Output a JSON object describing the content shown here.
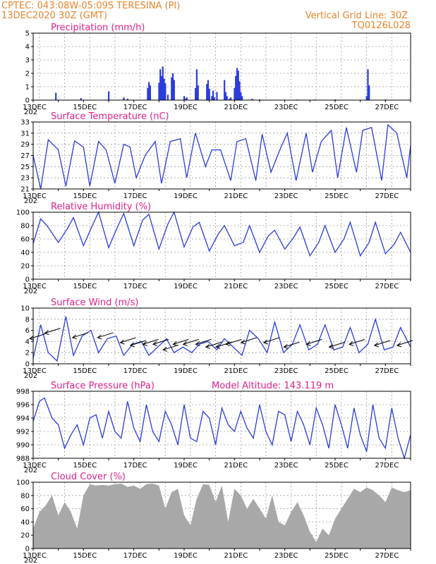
{
  "header": {
    "line1_left": "CPTEC:   043:08W-05:09S   TERESINA (PI)",
    "line2_left": "13DEC2020  30Z (GMT)",
    "line2_right": "Vertical Grid Line: 30Z",
    "line3_right": "TQ0126L028"
  },
  "colors": {
    "header": "#e8842a",
    "panel_title": "#e0208a",
    "series": "#2a3ddb",
    "cloud": "#a8a8a8"
  },
  "x_axis": {
    "labels": [
      "13DEC",
      "15DEC",
      "17DEC",
      "19DEC",
      "21DEC",
      "23DEC",
      "25DEC",
      "27DEC"
    ],
    "year_stub": "202"
  },
  "chart_data": [
    {
      "type": "bar",
      "title": "Precipitation (mm/h)",
      "ylim": [
        0,
        5
      ],
      "yticks": [
        "0",
        "1",
        "2",
        "3",
        "4",
        "5"
      ],
      "x_unit": "days since 13DEC2020 00Z",
      "x": [
        0.9,
        1.9,
        3.0,
        3.6,
        3.75,
        4.55,
        4.6,
        4.65,
        5.0,
        5.05,
        5.1,
        5.15,
        5.2,
        5.25,
        5.35,
        5.5,
        5.55,
        5.6,
        6.0,
        6.05,
        6.1,
        6.45,
        6.5,
        6.55,
        6.9,
        6.95,
        7.0,
        7.1,
        7.15,
        7.2,
        7.3,
        7.6,
        7.65,
        7.7,
        7.8,
        7.85,
        8.0,
        8.05,
        8.1,
        8.15,
        8.2,
        8.25,
        8.3,
        8.7,
        9.0,
        10.5,
        11.2,
        12.0,
        13.25,
        13.3,
        13.35,
        14.0
      ],
      "values": [
        0.55,
        0.15,
        0.65,
        0.2,
        0.1,
        0.9,
        1.35,
        1.1,
        1.3,
        2.3,
        1.8,
        2.5,
        1.6,
        1.25,
        0.4,
        1.7,
        2.0,
        1.5,
        0.3,
        0.1,
        0.2,
        0.9,
        2.3,
        1.1,
        1.2,
        1.5,
        0.85,
        0.3,
        0.7,
        0.2,
        0.6,
        1.5,
        0.6,
        0.3,
        0.1,
        0.2,
        0.9,
        1.8,
        2.4,
        2.2,
        1.4,
        0.6,
        0.3,
        0.1,
        0.05,
        0.05,
        0.05,
        0.05,
        0.3,
        2.3,
        1.1,
        0.05
      ]
    },
    {
      "type": "line",
      "title": "Surface Temperature (nC)",
      "ylim": [
        21,
        33
      ],
      "yticks": [
        "21",
        "23",
        "25",
        "27",
        "29",
        "31",
        "33"
      ],
      "x_unit": "days since 13DEC2020 00Z",
      "x": [
        0,
        0.3,
        0.6,
        1.0,
        1.3,
        1.65,
        2.0,
        2.25,
        2.6,
        2.9,
        3.25,
        3.6,
        3.85,
        4.1,
        4.45,
        4.85,
        5.1,
        5.45,
        5.85,
        6.1,
        6.45,
        6.85,
        7.1,
        7.45,
        7.85,
        8.1,
        8.45,
        8.85,
        9.1,
        9.45,
        9.85,
        10.1,
        10.45,
        10.85,
        11.1,
        11.45,
        11.85,
        12.1,
        12.45,
        12.85,
        13.1,
        13.45,
        13.85,
        14.1,
        14.45,
        14.85,
        15.0
      ],
      "values": [
        27.0,
        21.0,
        29.8,
        28.0,
        21.5,
        29.6,
        28.5,
        21.5,
        29.5,
        28.0,
        22.0,
        29.0,
        28.5,
        23.0,
        27.0,
        29.5,
        22.0,
        29.5,
        30.0,
        23.0,
        31.0,
        25.0,
        28.0,
        28.0,
        22.5,
        29.5,
        30.0,
        22.5,
        30.8,
        24.0,
        28.5,
        31.0,
        22.5,
        31.0,
        24.0,
        29.5,
        31.5,
        23.0,
        32.0,
        24.0,
        31.5,
        32.0,
        22.5,
        32.5,
        31.0,
        23.0,
        28.8
      ]
    },
    {
      "type": "line",
      "title": "Relative Humidity (%)",
      "ylim": [
        0,
        100
      ],
      "yticks": [
        "0",
        "20",
        "40",
        "60",
        "80",
        "100"
      ],
      "x_unit": "days since 13DEC2020 00Z",
      "x": [
        0,
        0.3,
        0.55,
        1.0,
        1.35,
        1.6,
        2.0,
        2.35,
        2.6,
        3.0,
        3.35,
        3.6,
        4.0,
        4.35,
        4.6,
        5.0,
        5.35,
        5.6,
        6.0,
        6.35,
        6.6,
        7.0,
        7.35,
        7.6,
        8.0,
        8.35,
        8.6,
        9.0,
        9.35,
        9.6,
        10.0,
        10.35,
        10.6,
        11.0,
        11.35,
        11.6,
        12.0,
        12.35,
        12.6,
        13.0,
        13.35,
        13.6,
        14.0,
        14.35,
        14.6,
        15.0
      ],
      "values": [
        53.0,
        90.0,
        80.0,
        55.0,
        75.0,
        92.0,
        50.0,
        80.0,
        100.0,
        47.0,
        78.0,
        98.0,
        50.0,
        88.0,
        97.0,
        45.0,
        82.0,
        100.0,
        48.0,
        78.0,
        85.0,
        42.0,
        67.0,
        80.0,
        50.0,
        55.0,
        80.0,
        40.0,
        65.0,
        73.0,
        45.0,
        62.0,
        78.0,
        35.0,
        55.0,
        80.0,
        40.0,
        60.0,
        85.0,
        35.0,
        55.0,
        85.0,
        38.0,
        52.0,
        70.0,
        40.0
      ]
    },
    {
      "type": "line",
      "title": "Surface Wind (m/s)",
      "ylim": [
        0,
        10
      ],
      "yticks": [
        "0",
        "2",
        "4",
        "6",
        "8",
        "10"
      ],
      "x_unit": "days since 13DEC2020 00Z",
      "x": [
        0,
        0.3,
        0.6,
        0.95,
        1.3,
        1.6,
        1.95,
        2.3,
        2.6,
        2.95,
        3.3,
        3.6,
        3.95,
        4.3,
        4.6,
        4.95,
        5.3,
        5.6,
        5.95,
        6.3,
        6.6,
        6.95,
        7.3,
        7.6,
        7.95,
        8.3,
        8.6,
        8.95,
        9.3,
        9.6,
        9.95,
        10.3,
        10.6,
        10.95,
        11.3,
        11.6,
        11.95,
        12.3,
        12.6,
        12.95,
        13.3,
        13.6,
        13.95,
        14.3,
        14.6,
        15.0
      ],
      "values": [
        1.0,
        7.0,
        2.0,
        0.5,
        8.5,
        1.5,
        5.0,
        6.0,
        2.0,
        4.5,
        5.0,
        1.5,
        3.5,
        4.0,
        1.5,
        3.0,
        4.5,
        2.0,
        3.0,
        2.0,
        3.5,
        4.0,
        2.5,
        4.5,
        3.0,
        1.5,
        6.0,
        4.5,
        2.0,
        7.5,
        2.0,
        3.5,
        7.0,
        2.5,
        3.5,
        7.0,
        2.5,
        3.0,
        6.5,
        2.0,
        3.5,
        8.0,
        2.5,
        3.0,
        6.5,
        3.0
      ],
      "vectors_x": [
        0.2,
        0.8,
        1.9,
        2.9,
        3.8,
        4.2,
        4.7,
        5.1,
        5.5,
        5.9,
        6.3,
        6.8,
        7.2,
        7.6,
        8.0,
        8.6,
        9.5,
        10.3,
        11.2,
        12.1,
        12.9,
        13.9,
        14.8
      ],
      "vectors_level": [
        5.0,
        6.0,
        5.2,
        5.2,
        4.3,
        3.8,
        4.0,
        4.0,
        3.0,
        4.0,
        4.0,
        4.0,
        3.5,
        3.5,
        4.0,
        4.3,
        4.3,
        3.5,
        4.0,
        3.5,
        4.0,
        3.8,
        3.8
      ]
    },
    {
      "type": "line",
      "title": "Surface Pressure (hPa)",
      "annotation": "Model Altitude: 143.119  m",
      "ylim": [
        988,
        998
      ],
      "yticks": [
        "988",
        "990",
        "992",
        "994",
        "996",
        "998"
      ],
      "x_unit": "days since 13DEC2020 00Z",
      "x": [
        0,
        0.25,
        0.45,
        0.75,
        1.0,
        1.25,
        1.5,
        1.75,
        2.0,
        2.25,
        2.5,
        2.75,
        3.0,
        3.25,
        3.5,
        3.75,
        4.0,
        4.25,
        4.5,
        4.75,
        5.0,
        5.25,
        5.5,
        5.75,
        6.0,
        6.25,
        6.5,
        6.75,
        7.0,
        7.25,
        7.5,
        7.75,
        8.0,
        8.25,
        8.5,
        8.75,
        9.0,
        9.25,
        9.5,
        9.75,
        10.0,
        10.25,
        10.5,
        10.75,
        11.0,
        11.25,
        11.5,
        11.75,
        12.0,
        12.25,
        12.5,
        12.75,
        13.0,
        13.25,
        13.5,
        13.75,
        14.0,
        14.25,
        14.5,
        14.75,
        15.0
      ],
      "values": [
        993.5,
        996.5,
        997.0,
        994.0,
        993.0,
        989.5,
        991.5,
        993.0,
        990.0,
        994.0,
        994.5,
        991.0,
        995.0,
        992.0,
        991.0,
        996.5,
        992.5,
        990.5,
        996.0,
        992.0,
        990.5,
        995.0,
        993.0,
        990.0,
        996.0,
        991.0,
        990.5,
        995.0,
        994.0,
        990.0,
        995.5,
        993.0,
        992.0,
        995.0,
        992.5,
        991.0,
        996.0,
        992.0,
        990.0,
        995.0,
        994.5,
        990.5,
        995.0,
        993.0,
        990.0,
        995.5,
        993.0,
        989.5,
        996.0,
        993.0,
        989.5,
        995.5,
        991.5,
        989.0,
        996.0,
        991.0,
        989.5,
        995.5,
        991.0,
        988.0,
        991.5
      ]
    },
    {
      "type": "area",
      "title": "Cloud Cover (%)",
      "ylim": [
        0,
        100
      ],
      "yticks": [
        "0",
        "20",
        "40",
        "60",
        "80",
        "100"
      ],
      "x_unit": "days since 13DEC2020 00Z",
      "x": [
        0,
        0.25,
        0.5,
        0.75,
        1.0,
        1.25,
        1.5,
        1.75,
        2.0,
        2.25,
        2.5,
        2.75,
        3.0,
        3.25,
        3.5,
        3.75,
        4.0,
        4.25,
        4.5,
        4.75,
        5.0,
        5.25,
        5.5,
        5.75,
        6.0,
        6.25,
        6.5,
        6.75,
        7.0,
        7.25,
        7.5,
        7.75,
        8.0,
        8.25,
        8.5,
        8.75,
        9.0,
        9.25,
        9.5,
        9.75,
        10.0,
        10.25,
        10.5,
        10.75,
        11.0,
        11.25,
        11.5,
        11.75,
        12.0,
        12.25,
        12.5,
        12.75,
        13.0,
        13.25,
        13.5,
        13.75,
        14.0,
        14.25,
        14.5,
        14.75,
        15.0
      ],
      "values": [
        30,
        55,
        65,
        80,
        50,
        70,
        55,
        30,
        80,
        97,
        95,
        96,
        95,
        97,
        98,
        93,
        95,
        90,
        97,
        98,
        95,
        60,
        85,
        90,
        50,
        35,
        75,
        97,
        96,
        70,
        95,
        40,
        90,
        80,
        60,
        75,
        60,
        45,
        80,
        40,
        35,
        55,
        70,
        50,
        25,
        10,
        30,
        20,
        45,
        60,
        75,
        90,
        85,
        92,
        88,
        80,
        70,
        92,
        88,
        85,
        88
      ]
    }
  ]
}
